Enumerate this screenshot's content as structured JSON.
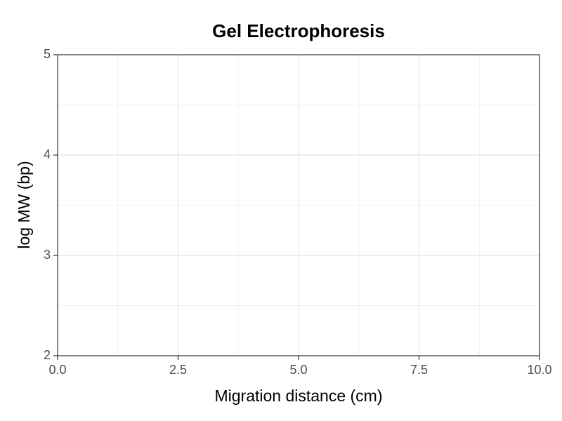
{
  "chart_data": {
    "type": "scatter",
    "title": "Gel Electrophoresis",
    "x_label": "Migration distance (cm)",
    "y_label": "log MW (bp)",
    "xlim": [
      0,
      10
    ],
    "xticks": [
      {
        "value": 0,
        "label": "0.0"
      },
      2.5,
      {
        "value": 5,
        "label": "5.0"
      },
      7.5,
      {
        "value": 10,
        "label": "10.0"
      }
    ],
    "ylim": [
      2,
      5
    ],
    "yticks": [
      2,
      3,
      4,
      5
    ],
    "grid": true
  }
}
